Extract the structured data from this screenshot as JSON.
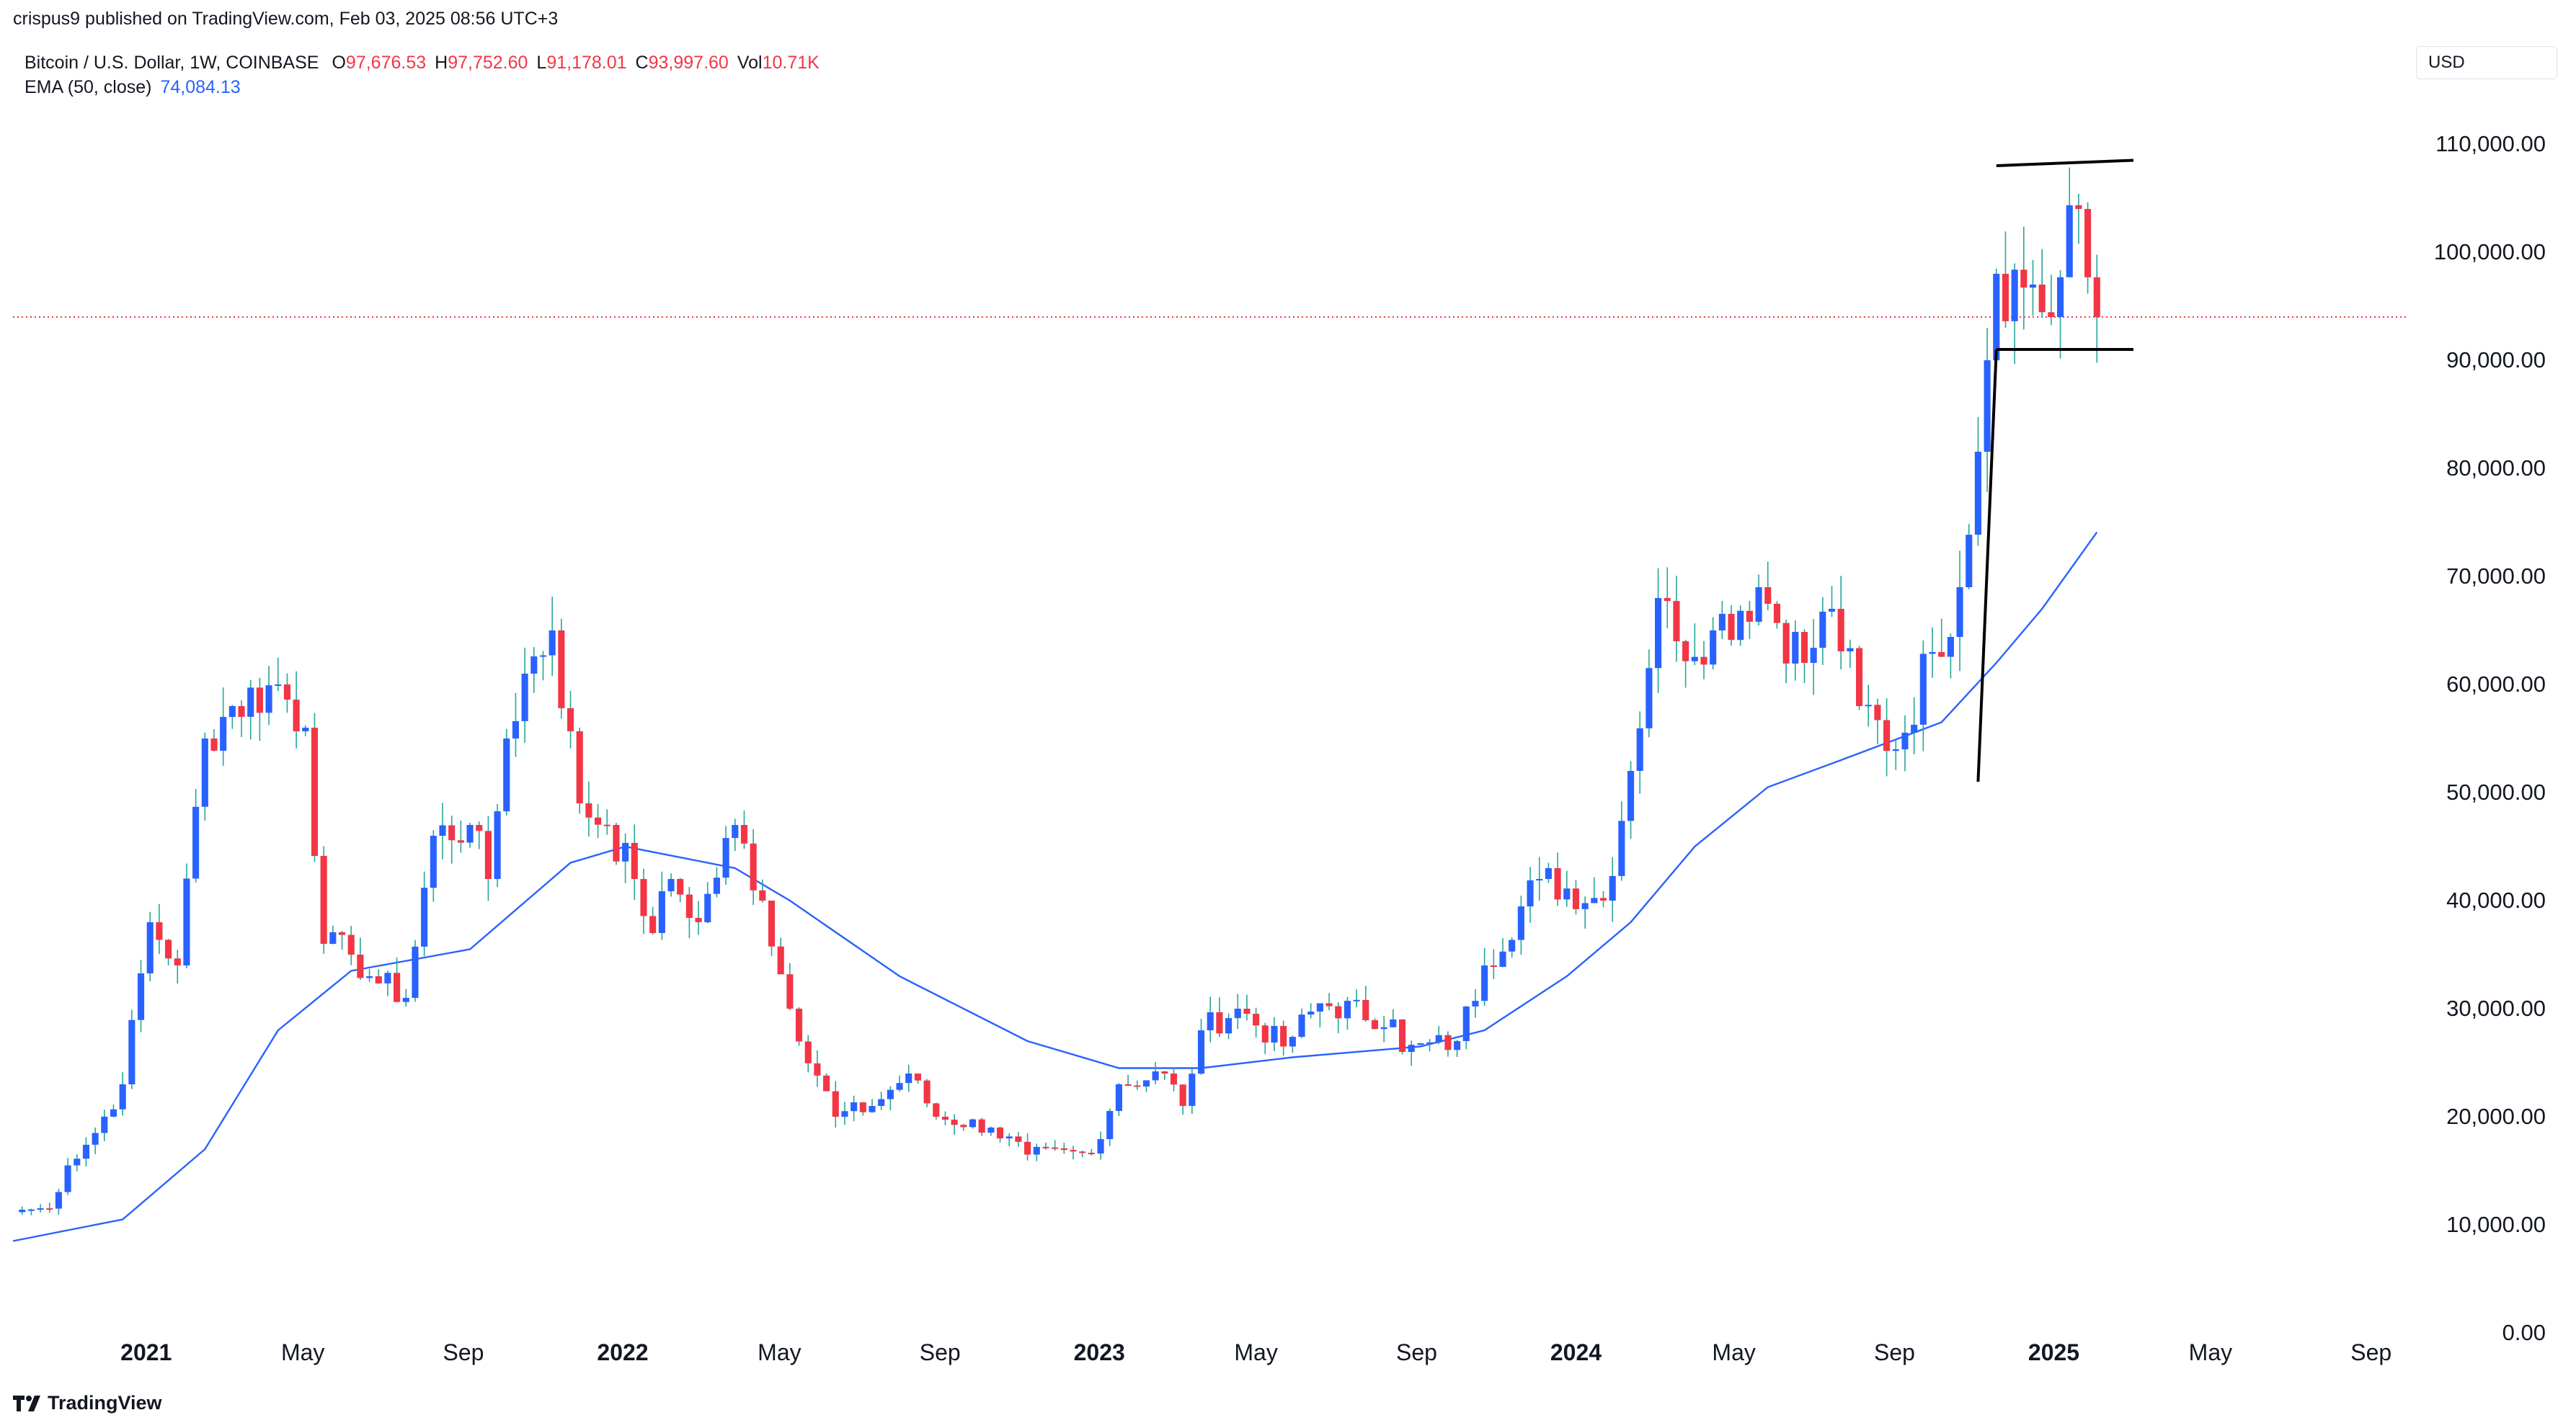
{
  "header": {
    "publisher": "crispus9 published on TradingView.com, Feb 03, 2025 08:56 UTC+3",
    "symbol": "Bitcoin / U.S. Dollar, 1W, COINBASE",
    "ohlc": {
      "o_label": "O",
      "o": "97,676.53",
      "h_label": "H",
      "h": "97,752.60",
      "l_label": "L",
      "l": "91,178.01",
      "c_label": "C",
      "c": "93,997.60",
      "vol_label": "Vol",
      "vol": "10.71K"
    },
    "ema_label": "EMA (50, close)",
    "ema_value": "74,084.13",
    "currency": "USD"
  },
  "footer": {
    "brand": "TradingView"
  },
  "colors": {
    "up": "#2962ff",
    "down": "#f23645",
    "wick": "#26a69a",
    "ema": "#2962ff",
    "price_line": "#f23645",
    "axis_text": "#131722",
    "trendline": "#000000"
  },
  "chart_data": {
    "type": "candlestick",
    "interval": "1W",
    "y_ticks": [
      "0.00",
      "10,000.00",
      "20,000.00",
      "30,000.00",
      "40,000.00",
      "50,000.00",
      "60,000.00",
      "70,000.00",
      "80,000.00",
      "90,000.00",
      "100,000.00",
      "110,000.00"
    ],
    "ylim": [
      -2000,
      118000
    ],
    "x_ticks": [
      {
        "label": "2021",
        "date": "2021-01-01",
        "bold": true
      },
      {
        "label": "May",
        "date": "2021-05-01"
      },
      {
        "label": "Sep",
        "date": "2021-09-01"
      },
      {
        "label": "2022",
        "date": "2022-01-01",
        "bold": true
      },
      {
        "label": "May",
        "date": "2022-05-01"
      },
      {
        "label": "Sep",
        "date": "2022-09-01"
      },
      {
        "label": "2023",
        "date": "2023-01-01",
        "bold": true
      },
      {
        "label": "May",
        "date": "2023-05-01"
      },
      {
        "label": "Sep",
        "date": "2023-09-01"
      },
      {
        "label": "2024",
        "date": "2024-01-01",
        "bold": true
      },
      {
        "label": "May",
        "date": "2024-05-01"
      },
      {
        "label": "Sep",
        "date": "2024-09-01"
      },
      {
        "label": "2025",
        "date": "2025-01-01",
        "bold": true
      },
      {
        "label": "May",
        "date": "2025-05-01"
      },
      {
        "label": "Sep",
        "date": "2025-09-01"
      }
    ],
    "xlim": [
      "2020-09-21",
      "2025-09-26"
    ],
    "last_price": 93997.6,
    "close_anchors": [
      [
        "2020-09-28",
        11400
      ],
      [
        "2020-10-19",
        11500
      ],
      [
        "2020-11-02",
        15500
      ],
      [
        "2020-11-23",
        18500
      ],
      [
        "2020-12-14",
        23000
      ],
      [
        "2021-01-04",
        38000
      ],
      [
        "2021-01-25",
        34000
      ],
      [
        "2021-02-15",
        55000
      ],
      [
        "2021-03-08",
        58000
      ],
      [
        "2021-04-12",
        60000
      ],
      [
        "2021-05-03",
        56000
      ],
      [
        "2021-05-17",
        36000
      ],
      [
        "2021-06-07",
        35000
      ],
      [
        "2021-06-21",
        33000
      ],
      [
        "2021-07-19",
        31000
      ],
      [
        "2021-08-09",
        46000
      ],
      [
        "2021-09-06",
        47000
      ],
      [
        "2021-09-20",
        42000
      ],
      [
        "2021-10-04",
        55000
      ],
      [
        "2021-10-18",
        61000
      ],
      [
        "2021-11-08",
        65000
      ],
      [
        "2021-11-29",
        49000
      ],
      [
        "2021-12-20",
        47000
      ],
      [
        "2022-01-10",
        42000
      ],
      [
        "2022-01-24",
        37000
      ],
      [
        "2022-02-07",
        42000
      ],
      [
        "2022-02-28",
        38000
      ],
      [
        "2022-03-28",
        47000
      ],
      [
        "2022-04-18",
        40000
      ],
      [
        "2022-05-09",
        30000
      ],
      [
        "2022-06-13",
        20000
      ],
      [
        "2022-07-11",
        21000
      ],
      [
        "2022-08-08",
        24000
      ],
      [
        "2022-08-29",
        20000
      ],
      [
        "2022-10-10",
        19000
      ],
      [
        "2022-11-07",
        16500
      ],
      [
        "2022-12-26",
        16600
      ],
      [
        "2023-01-16",
        23000
      ],
      [
        "2023-02-20",
        24000
      ],
      [
        "2023-03-06",
        21000
      ],
      [
        "2023-03-20",
        28000
      ],
      [
        "2023-04-17",
        30000
      ],
      [
        "2023-05-22",
        26500
      ],
      [
        "2023-06-19",
        30500
      ],
      [
        "2023-08-14",
        29000
      ],
      [
        "2023-08-21",
        26000
      ],
      [
        "2023-10-02",
        27000
      ],
      [
        "2023-10-23",
        34000
      ],
      [
        "2023-12-04",
        42000
      ],
      [
        "2024-01-22",
        40000
      ],
      [
        "2024-02-12",
        52000
      ],
      [
        "2024-03-04",
        68000
      ],
      [
        "2024-03-18",
        64000
      ],
      [
        "2024-04-15",
        65000
      ],
      [
        "2024-05-20",
        69000
      ],
      [
        "2024-06-24",
        62000
      ],
      [
        "2024-07-15",
        67000
      ],
      [
        "2024-08-05",
        58000
      ],
      [
        "2024-09-02",
        54000
      ],
      [
        "2024-09-30",
        63000
      ],
      [
        "2024-10-21",
        69000
      ],
      [
        "2024-11-11",
        90000
      ],
      [
        "2024-11-18",
        98000
      ],
      [
        "2024-12-16",
        97000
      ],
      [
        "2024-12-30",
        94000
      ],
      [
        "2025-01-20",
        104000
      ],
      [
        "2025-01-27",
        97676
      ],
      [
        "2025-02-03",
        93997.6
      ]
    ],
    "ema": {
      "name": "EMA (50, close)",
      "points": [
        [
          "2020-09-21",
          8500
        ],
        [
          "2020-12-14",
          10500
        ],
        [
          "2021-02-15",
          17000
        ],
        [
          "2021-04-12",
          28000
        ],
        [
          "2021-06-07",
          33500
        ],
        [
          "2021-09-06",
          35500
        ],
        [
          "2021-11-22",
          43500
        ],
        [
          "2022-01-03",
          45000
        ],
        [
          "2022-03-28",
          43000
        ],
        [
          "2022-05-09",
          40000
        ],
        [
          "2022-08-01",
          33000
        ],
        [
          "2022-11-07",
          27000
        ],
        [
          "2023-01-16",
          24500
        ],
        [
          "2023-03-20",
          24500
        ],
        [
          "2023-05-29",
          25500
        ],
        [
          "2023-09-04",
          26500
        ],
        [
          "2023-10-23",
          28000
        ],
        [
          "2023-12-25",
          33000
        ],
        [
          "2024-02-12",
          38000
        ],
        [
          "2024-04-01",
          45000
        ],
        [
          "2024-05-27",
          50500
        ],
        [
          "2024-07-22",
          53000
        ],
        [
          "2024-10-07",
          56500
        ],
        [
          "2024-11-18",
          62000
        ],
        [
          "2024-12-23",
          67000
        ],
        [
          "2025-02-03",
          74084.13
        ]
      ]
    },
    "annotations": [
      {
        "type": "trendline",
        "points": [
          [
            "2024-11-04",
            51000
          ],
          [
            "2024-11-18",
            91000
          ]
        ]
      },
      {
        "type": "trendline",
        "points": [
          [
            "2024-11-18",
            91000
          ],
          [
            "2025-03-03",
            91000
          ]
        ]
      },
      {
        "type": "trendline",
        "points": [
          [
            "2024-11-18",
            108000
          ],
          [
            "2025-03-03",
            108500
          ]
        ]
      }
    ]
  }
}
